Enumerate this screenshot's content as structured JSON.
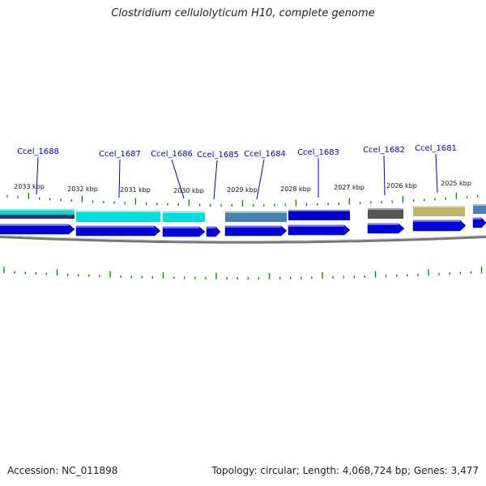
{
  "title": "Clostridium cellulolyticum H10, complete genome",
  "footer": {
    "accession": "Accession: NC_011898",
    "summary": "Topology: circular; Length: 4,068,724 bp; Genes: 3,477"
  },
  "colors": {
    "tick": "#118811",
    "gene_label": "#0000cc",
    "cds_arrow": "#0000dd",
    "backbone": "#777777"
  },
  "ruler": {
    "labels": [
      "2033 kbp",
      "2032 kbp",
      "2031 kbp",
      "2030 kbp",
      "2029 kbp",
      "2028 kbp",
      "2027 kbp",
      "2026 kbp",
      "2025 kbp"
    ]
  },
  "genes": [
    {
      "name": "Ccel_1688"
    },
    {
      "name": "Ccel_1687"
    },
    {
      "name": "Ccel_1686"
    },
    {
      "name": "Ccel_1685"
    },
    {
      "name": "Ccel_1684"
    },
    {
      "name": "Ccel_1683"
    },
    {
      "name": "Ccel_1682"
    },
    {
      "name": "Ccel_1681"
    }
  ],
  "feature_blocks": [
    {
      "color": "#00dddd"
    },
    {
      "color": "#00dddd"
    },
    {
      "color": "#00dddd"
    },
    {
      "color": "#4682b4"
    },
    {
      "color": "#0000cc"
    },
    {
      "color": "#555555"
    },
    {
      "color": "#bdb76b"
    },
    {
      "color": "#4682b4"
    }
  ]
}
